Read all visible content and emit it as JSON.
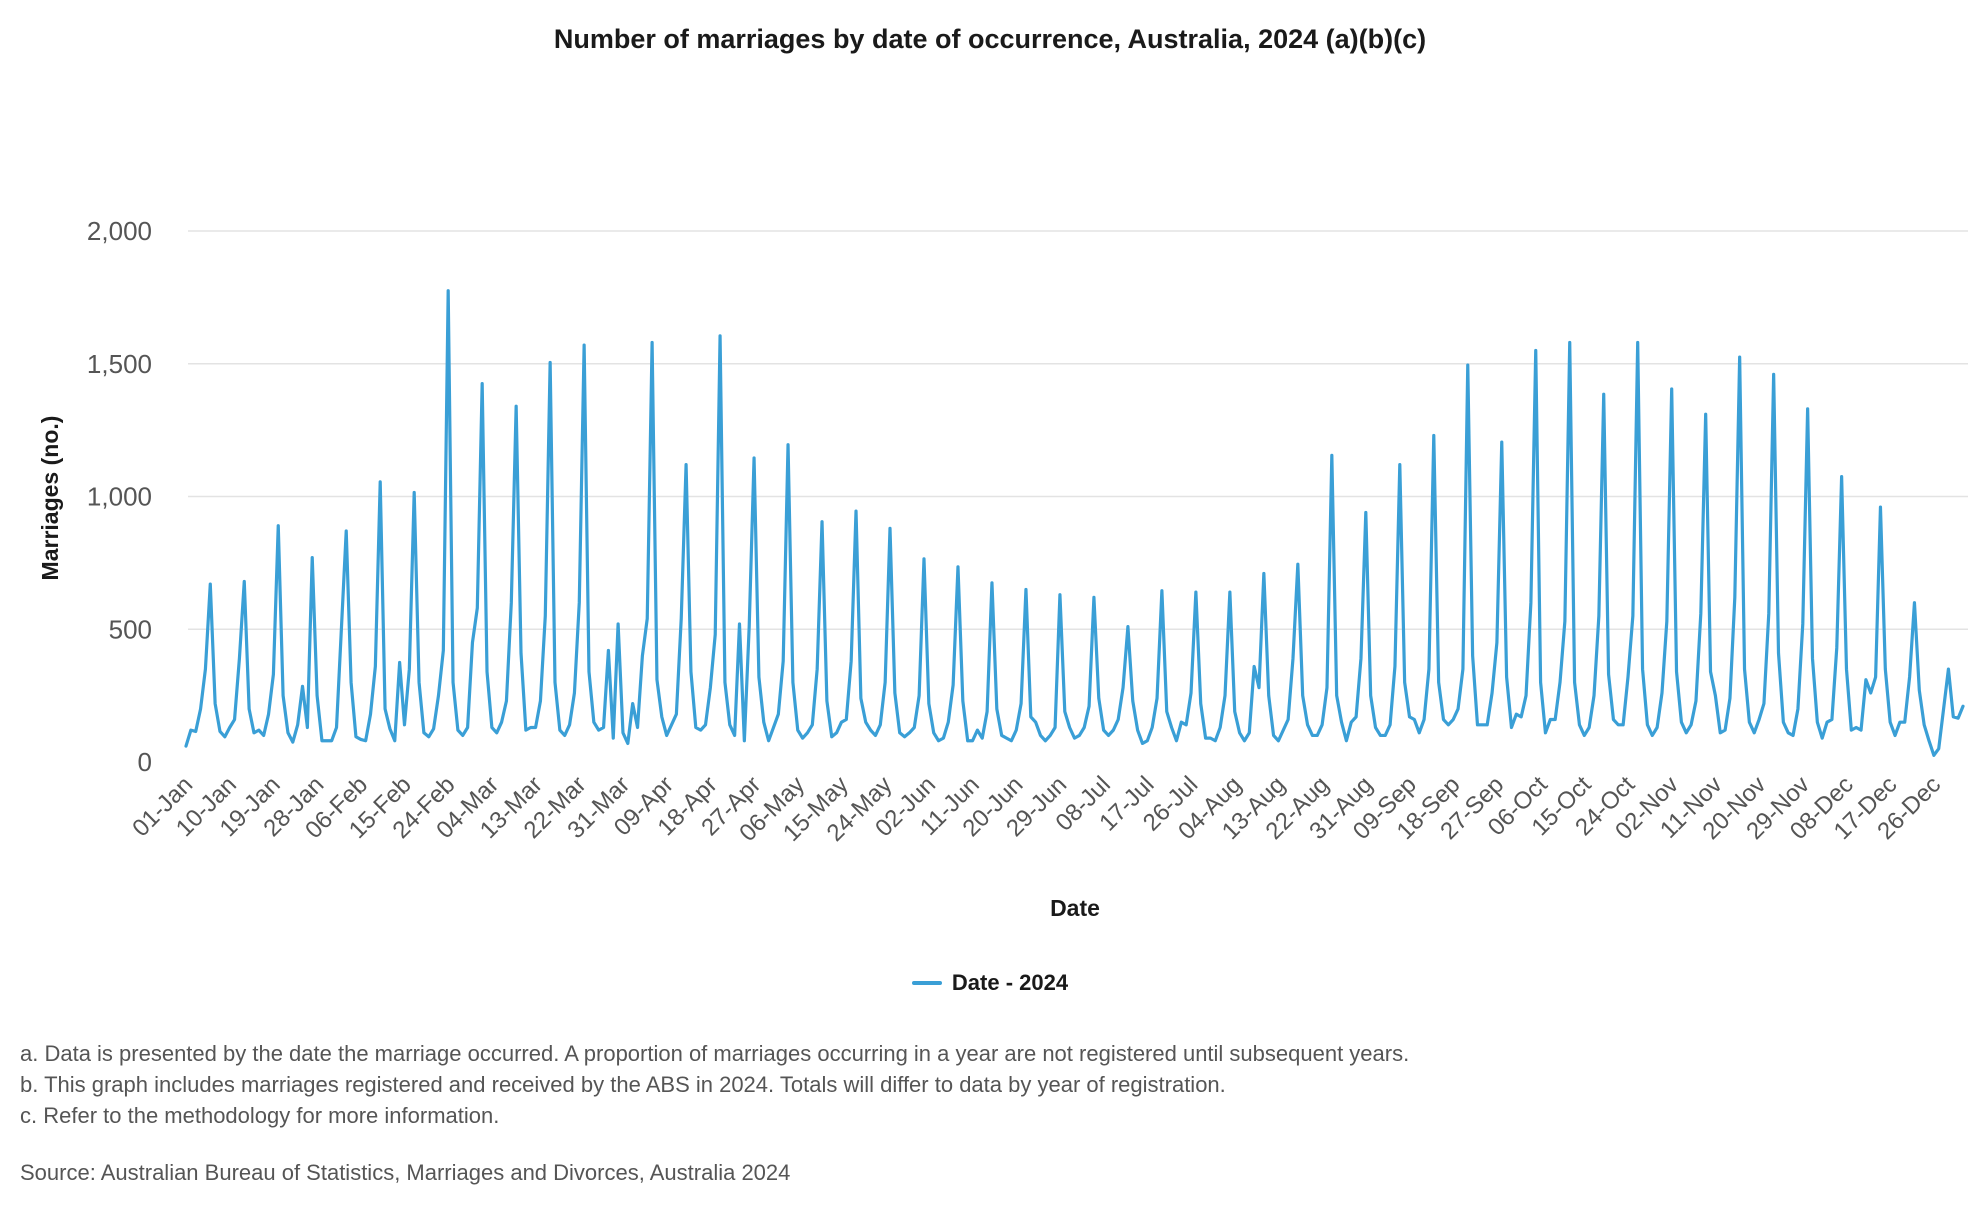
{
  "chart_data": {
    "type": "line",
    "title": "Number of marriages by date of occurrence, Australia, 2024 (a)(b)(c)",
    "xlabel": "Date",
    "ylabel": "Marriages (no.)",
    "ylim": [
      0,
      2000
    ],
    "yticks": [
      "0",
      "500",
      "1,000",
      "1,500",
      "2,000"
    ],
    "xtick_labels": [
      "01-Jan",
      "10-Jan",
      "19-Jan",
      "28-Jan",
      "06-Feb",
      "15-Feb",
      "24-Feb",
      "04-Mar",
      "13-Mar",
      "22-Mar",
      "31-Mar",
      "09-Apr",
      "18-Apr",
      "27-Apr",
      "06-May",
      "15-May",
      "24-May",
      "02-Jun",
      "11-Jun",
      "20-Jun",
      "29-Jun",
      "08-Jul",
      "17-Jul",
      "26-Jul",
      "04-Aug",
      "13-Aug",
      "22-Aug",
      "31-Aug",
      "09-Sep",
      "18-Sep",
      "27-Sep",
      "06-Oct",
      "15-Oct",
      "24-Oct",
      "02-Nov",
      "11-Nov",
      "20-Nov",
      "29-Nov",
      "08-Dec",
      "17-Dec",
      "26-Dec"
    ],
    "grid": true,
    "legend_position": "bottom",
    "line_color": "#3a9fd6",
    "series": [
      {
        "name": "Date - 2024",
        "values": [
          60,
          120,
          115,
          200,
          350,
          670,
          220,
          115,
          95,
          130,
          160,
          390,
          680,
          200,
          110,
          120,
          100,
          180,
          330,
          890,
          250,
          110,
          75,
          140,
          285,
          130,
          770,
          250,
          80,
          80,
          80,
          130,
          500,
          870,
          300,
          95,
          85,
          80,
          180,
          360,
          1055,
          200,
          125,
          80,
          375,
          140,
          350,
          1015,
          300,
          110,
          95,
          125,
          250,
          420,
          1775,
          300,
          120,
          100,
          130,
          450,
          580,
          1425,
          340,
          130,
          110,
          150,
          230,
          600,
          1340,
          410,
          120,
          130,
          130,
          230,
          550,
          1505,
          300,
          120,
          100,
          140,
          260,
          600,
          1570,
          340,
          150,
          120,
          130,
          420,
          90,
          520,
          110,
          70,
          220,
          130,
          400,
          540,
          1580,
          310,
          170,
          100,
          140,
          180,
          540,
          1120,
          340,
          130,
          120,
          140,
          280,
          480,
          1605,
          300,
          140,
          100,
          520,
          80,
          510,
          1145,
          320,
          150,
          80,
          130,
          180,
          380,
          1195,
          300,
          120,
          90,
          110,
          140,
          350,
          905,
          230,
          95,
          110,
          150,
          160,
          380,
          945,
          240,
          150,
          120,
          100,
          140,
          300,
          880,
          260,
          110,
          95,
          110,
          130,
          250,
          765,
          220,
          110,
          80,
          90,
          150,
          290,
          735,
          230,
          80,
          80,
          120,
          90,
          190,
          675,
          200,
          100,
          90,
          80,
          120,
          220,
          650,
          170,
          150,
          100,
          80,
          100,
          130,
          630,
          190,
          130,
          90,
          100,
          130,
          210,
          620,
          240,
          120,
          100,
          120,
          160,
          280,
          510,
          230,
          120,
          70,
          80,
          130,
          240,
          645,
          190,
          130,
          80,
          150,
          140,
          260,
          640,
          220,
          90,
          90,
          80,
          130,
          250,
          640,
          190,
          110,
          80,
          110,
          360,
          280,
          710,
          250,
          100,
          80,
          120,
          160,
          390,
          745,
          250,
          140,
          100,
          100,
          140,
          280,
          1155,
          250,
          150,
          80,
          150,
          170,
          390,
          940,
          250,
          130,
          100,
          100,
          140,
          360,
          1120,
          300,
          170,
          160,
          110,
          160,
          350,
          1230,
          300,
          160,
          140,
          160,
          200,
          350,
          1495,
          400,
          140,
          140,
          140,
          260,
          450,
          1205,
          320,
          130,
          180,
          170,
          250,
          600,
          1550,
          300,
          110,
          160,
          160,
          300,
          530,
          1580,
          300,
          140,
          100,
          130,
          250,
          550,
          1385,
          330,
          160,
          140,
          140,
          320,
          550,
          1580,
          350,
          140,
          100,
          130,
          260,
          530,
          1405,
          340,
          150,
          110,
          140,
          230,
          560,
          1310,
          340,
          250,
          110,
          120,
          240,
          620,
          1525,
          350,
          150,
          110,
          160,
          220,
          560,
          1460,
          410,
          150,
          110,
          100,
          200,
          520,
          1330,
          390,
          150,
          90,
          150,
          160,
          430,
          1075,
          350,
          120,
          130,
          120,
          310,
          260,
          320,
          960,
          350,
          150,
          100,
          150,
          150,
          320,
          600,
          270,
          140,
          80,
          25,
          50,
          200,
          350,
          170,
          165,
          210
        ]
      }
    ]
  },
  "legend": {
    "label": "Date - 2024"
  },
  "notes": [
    "a. Data is presented by the date the marriage occurred. A proportion of marriages occurring in a year are not registered until subsequent years.",
    "b. This graph includes marriages registered and received by the ABS in 2024. Totals will differ to data by year of registration.",
    "c. Refer to the methodology for more information."
  ],
  "source": "Source: Australian Bureau of Statistics, Marriages and Divorces, Australia 2024"
}
